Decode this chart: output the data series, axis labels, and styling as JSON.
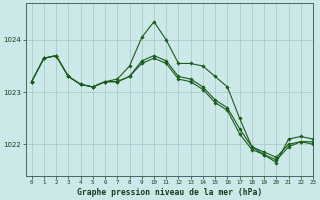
{
  "title": "Graphe pression niveau de la mer (hPa)",
  "bg_color": "#cce8e8",
  "grid_color": "#aacccc",
  "line_color": "#1a5c1a",
  "marker_color": "#1a5c1a",
  "xlim": [
    -0.5,
    23
  ],
  "ylim": [
    1021.4,
    1024.7
  ],
  "yticks": [
    1022,
    1023,
    1024
  ],
  "xticks": [
    0,
    1,
    2,
    3,
    4,
    5,
    6,
    7,
    8,
    9,
    10,
    11,
    12,
    13,
    14,
    15,
    16,
    17,
    18,
    19,
    20,
    21,
    22,
    23
  ],
  "series": [
    {
      "x": [
        0,
        1,
        2,
        3,
        4,
        5,
        6,
        7,
        8,
        9,
        10,
        11,
        12,
        13,
        14,
        15,
        16,
        17,
        18,
        19,
        20,
        21,
        22,
        23
      ],
      "y": [
        1023.2,
        1023.65,
        1023.7,
        1023.3,
        1023.15,
        1023.1,
        1023.2,
        1023.25,
        1023.5,
        1024.05,
        1024.35,
        1024.0,
        1023.55,
        1023.55,
        1023.5,
        1023.3,
        1023.1,
        1022.5,
        1021.95,
        1021.8,
        1021.65,
        1022.1,
        1022.15,
        1022.1
      ]
    },
    {
      "x": [
        0,
        1,
        2,
        3,
        4,
        5,
        6,
        7,
        8,
        9,
        10,
        11,
        12,
        13,
        14,
        15,
        16,
        17,
        18,
        19,
        20,
        21,
        22,
        23
      ],
      "y": [
        1023.2,
        1023.65,
        1023.7,
        1023.3,
        1023.15,
        1023.1,
        1023.2,
        1023.2,
        1023.3,
        1023.6,
        1023.7,
        1023.6,
        1023.3,
        1023.25,
        1023.1,
        1022.85,
        1022.7,
        1022.3,
        1021.95,
        1021.85,
        1021.75,
        1022.0,
        1022.05,
        1022.05
      ]
    },
    {
      "x": [
        0,
        1,
        2,
        3,
        4,
        5,
        6,
        7,
        8,
        9,
        10,
        11,
        12,
        13,
        14,
        15,
        16,
        17,
        18,
        19,
        20,
        21,
        22,
        23
      ],
      "y": [
        1023.2,
        1023.65,
        1023.7,
        1023.3,
        1023.15,
        1023.1,
        1023.2,
        1023.2,
        1023.3,
        1023.55,
        1023.65,
        1023.55,
        1023.25,
        1023.2,
        1023.05,
        1022.8,
        1022.65,
        1022.2,
        1021.9,
        1021.8,
        1021.7,
        1021.95,
        1022.05,
        1022.0
      ]
    }
  ]
}
